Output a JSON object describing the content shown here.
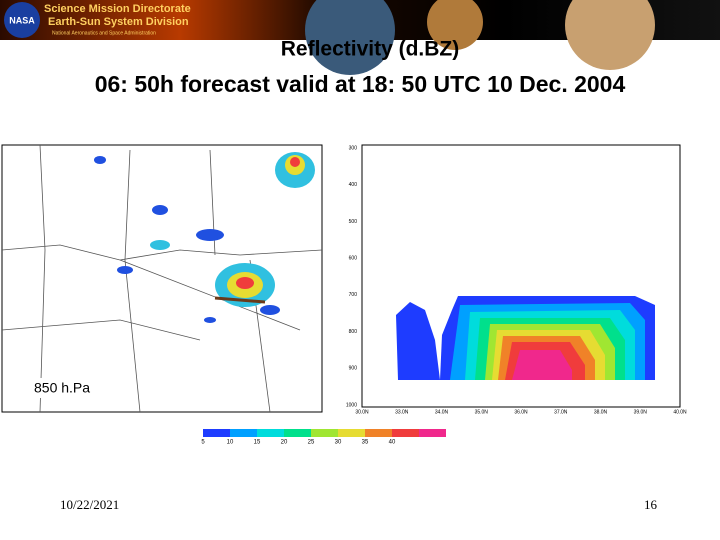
{
  "header": {
    "line1": "Science Mission Directorate",
    "line2": "Earth-Sun System Division",
    "line3": "National Aeronautics and Space Administration",
    "logo": "NASA"
  },
  "title": "Reflectivity (d.BZ)",
  "subtitle": "06: 50h forecast valid at 18: 50 UTC 10 Dec. 2004",
  "map": {
    "level_label": "850 h.Pa"
  },
  "cross_section": {
    "y_labels": [
      "300",
      "400",
      "500",
      "600",
      "700",
      "800",
      "900",
      "1000"
    ],
    "x_labels": [
      "30.0N",
      "33.0N",
      "34.0N",
      "35.0N",
      "36.0N",
      "37.0N",
      "38.0N",
      "39.0N",
      "40.0N"
    ]
  },
  "colorbar": {
    "colors": [
      "#1e3cff",
      "#00a0ff",
      "#00dcdc",
      "#00e08c",
      "#a0e632",
      "#e6dc32",
      "#f08228",
      "#f03c3c",
      "#f0288c"
    ],
    "labels": [
      5,
      10,
      15,
      20,
      25,
      30,
      35,
      40
    ]
  },
  "footer": {
    "date": "10/22/2021",
    "page": "16"
  }
}
